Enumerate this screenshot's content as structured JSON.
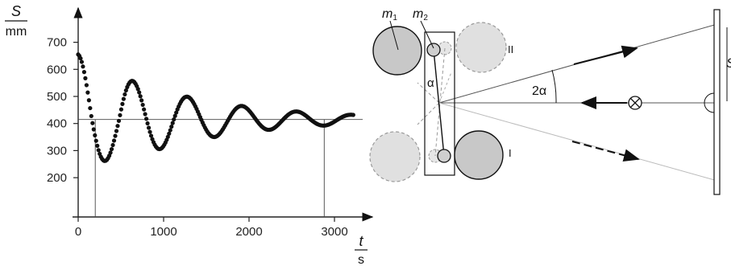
{
  "chart_data": {
    "type": "scatter",
    "ylabel_top": "S",
    "ylabel_bottom": "mm",
    "xlabel_top": "t",
    "xlabel_bottom": "s",
    "xlim": [
      0,
      3300
    ],
    "ylim": [
      150,
      740
    ],
    "x_ticks": [
      0,
      1000,
      2000,
      3000
    ],
    "y_ticks": [
      200,
      300,
      400,
      500,
      600,
      700
    ],
    "equilibrium": 415,
    "marker_time": 2880,
    "marker_start": 200,
    "oscillation": {
      "start_value": 655,
      "equilibrium": 415,
      "period_s": 640,
      "decay_per_s": 0.00082,
      "t_end": 3230,
      "amplitude_override": [
        {
          "t_from": 0,
          "t_to": 640,
          "amp": 240
        }
      ]
    }
  },
  "diagram": {
    "labels": {
      "m1": "m",
      "m1_sub": "1",
      "m2": "m",
      "m2_sub": "2",
      "alpha": "α",
      "two_alpha": "2α",
      "pos2": "II",
      "pos1": "I",
      "s": "S"
    }
  }
}
